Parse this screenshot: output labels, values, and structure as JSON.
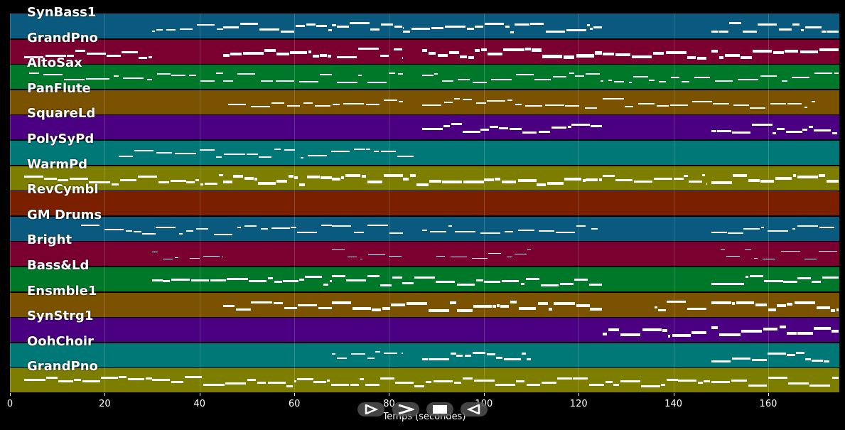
{
  "player": {
    "controls": [
      {
        "id": "play",
        "icon": "play-outline-icon"
      },
      {
        "id": "forward",
        "icon": "chevron-right-icon"
      },
      {
        "id": "stop",
        "icon": "stop-icon"
      },
      {
        "id": "rewind",
        "icon": "play-reverse-outline-icon"
      }
    ]
  },
  "chart_data": {
    "type": "piano-roll",
    "xlabel": "Temps (secondes)",
    "xlim": [
      0,
      175
    ],
    "xticks": [
      0,
      20,
      40,
      60,
      80,
      100,
      120,
      140,
      160
    ],
    "grid": true,
    "tracks": [
      {
        "name": "SynBass1",
        "color": "#0a5a80",
        "segments": [
          [
            30,
            45,
            2
          ],
          [
            45,
            68,
            3
          ],
          [
            68,
            83,
            3
          ],
          [
            83,
            125,
            3
          ],
          [
            148,
            175,
            3
          ]
        ]
      },
      {
        "name": "GrandPno",
        "color": "#7a0030",
        "segments": [
          [
            3,
            30,
            3
          ],
          [
            45,
            68,
            4
          ],
          [
            69,
            80,
            3
          ],
          [
            81,
            83,
            3
          ],
          [
            87,
            110,
            4
          ],
          [
            110,
            125,
            5
          ],
          [
            125,
            147,
            4
          ],
          [
            148,
            175,
            4
          ]
        ]
      },
      {
        "name": "AltoSax",
        "color": "#00782a",
        "segments": [
          [
            4,
            30,
            2
          ],
          [
            31,
            45,
            2
          ],
          [
            45,
            68,
            2
          ],
          [
            69,
            83,
            2
          ],
          [
            87,
            175,
            2
          ]
        ]
      },
      {
        "name": "PanFlute",
        "color": "#7a5200",
        "segments": [
          [
            46,
            83,
            2
          ],
          [
            87,
            124,
            2
          ],
          [
            125,
            170,
            2
          ]
        ]
      },
      {
        "name": "SquareLd",
        "color": "#4a0080",
        "segments": [
          [
            87,
            125,
            3
          ],
          [
            148,
            175,
            3
          ]
        ]
      },
      {
        "name": "PolySyPd",
        "color": "#007878",
        "segments": [
          [
            23,
            86,
            2
          ]
        ]
      },
      {
        "name": "WarmPd",
        "color": "#7d7d00",
        "segments": [
          [
            3,
            45,
            3
          ],
          [
            45,
            68,
            4
          ],
          [
            68,
            83,
            4
          ],
          [
            83,
            125,
            4
          ],
          [
            125,
            147,
            3
          ],
          [
            148,
            175,
            4
          ]
        ]
      },
      {
        "name": "RevCymbl",
        "color": "#7a2000",
        "segments": []
      },
      {
        "name": "GM Drums",
        "color": "#0a5a80",
        "segments": [
          [
            15,
            68,
            2
          ],
          [
            68,
            83,
            2
          ],
          [
            87,
            125,
            2
          ],
          [
            148,
            175,
            2
          ]
        ]
      },
      {
        "name": "Bright",
        "color": "#7a0030",
        "segments": [
          [
            30,
            36,
            1
          ],
          [
            38,
            45,
            1
          ],
          [
            68,
            83,
            1
          ],
          [
            90,
            110,
            1
          ],
          [
            150,
            175,
            1
          ]
        ]
      },
      {
        "name": "Bass&Ld",
        "color": "#00782a",
        "segments": [
          [
            30,
            68,
            3
          ],
          [
            68,
            125,
            3
          ],
          [
            148,
            175,
            3
          ]
        ]
      },
      {
        "name": "Ensmble1",
        "color": "#7a5200",
        "segments": [
          [
            45,
            68,
            3
          ],
          [
            68,
            125,
            4
          ],
          [
            136,
            147,
            3
          ],
          [
            148,
            175,
            4
          ]
        ]
      },
      {
        "name": "SynStrg1",
        "color": "#4a0080",
        "segments": [
          [
            125,
            147,
            4
          ],
          [
            148,
            175,
            4
          ]
        ]
      },
      {
        "name": "OohChoir",
        "color": "#007878",
        "segments": [
          [
            68,
            83,
            2
          ],
          [
            87,
            110,
            3
          ],
          [
            148,
            173,
            3
          ]
        ]
      },
      {
        "name": "GrandPno",
        "color": "#7d7d00",
        "segments": [
          [
            3,
            30,
            3
          ],
          [
            30,
            175,
            3
          ]
        ]
      }
    ]
  }
}
